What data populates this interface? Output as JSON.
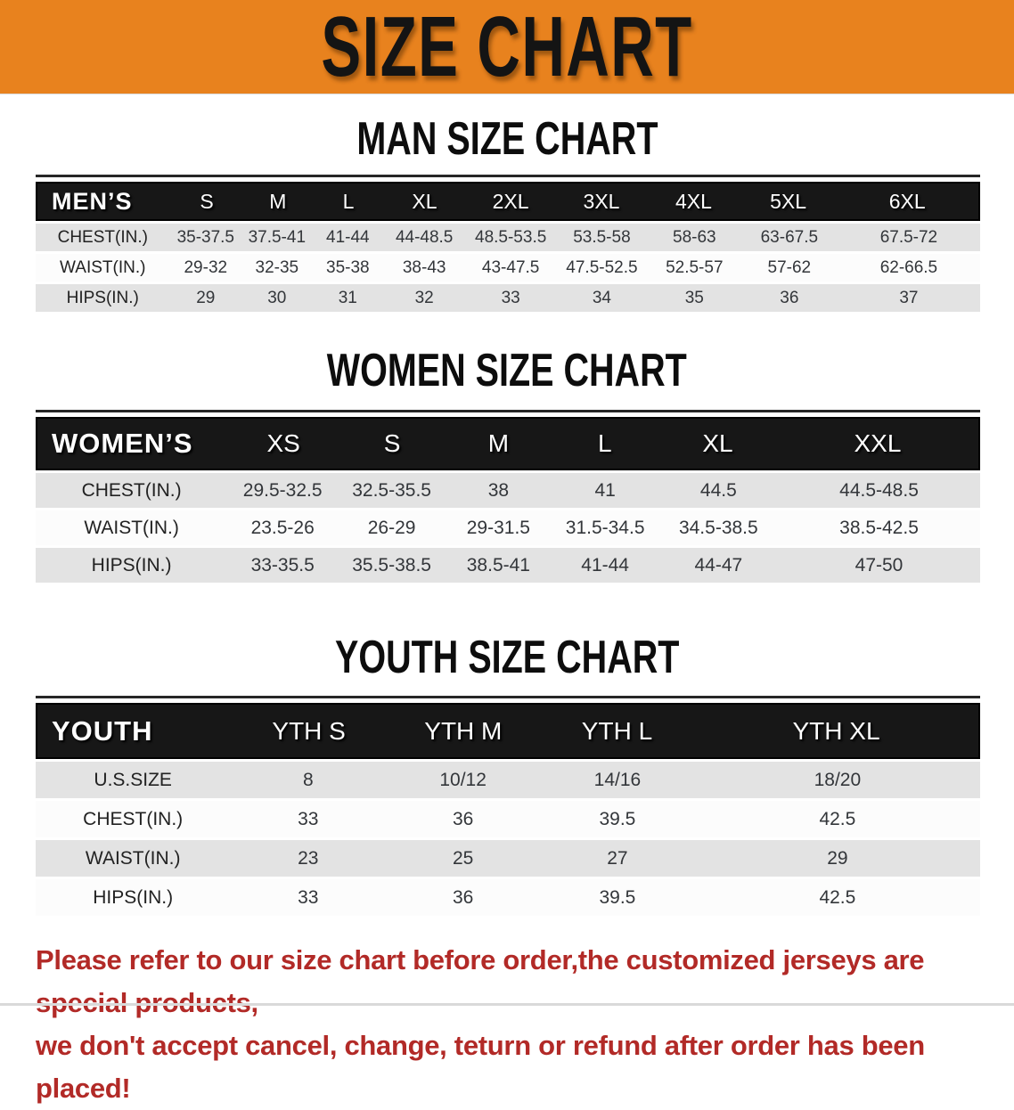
{
  "banner": {
    "title": "SIZE CHART",
    "background_color": "#E8821E"
  },
  "colors": {
    "banner_orange": "#E8821E",
    "header_bar_black": "#171717",
    "row_gray": "#E3E3E3",
    "row_white": "#FCFCFC",
    "disclaimer_red": "#B22A27"
  },
  "sections": [
    {
      "heading": "MAN SIZE CHART",
      "table": {
        "header_label": "MEN’S",
        "columns": [
          "S",
          "M",
          "L",
          "XL",
          "2XL",
          "3XL",
          "4XL",
          "5XL",
          "6XL"
        ],
        "rows": [
          {
            "label": "CHEST(IN.)",
            "values": [
              "35-37.5",
              "37.5-41",
              "41-44",
              "44-48.5",
              "48.5-53.5",
              "53.5-58",
              "58-63",
              "63-67.5",
              "67.5-72"
            ]
          },
          {
            "label": "WAIST(IN.)",
            "values": [
              "29-32",
              "32-35",
              "35-38",
              "38-43",
              "43-47.5",
              "47.5-52.5",
              "52.5-57",
              "57-62",
              "62-66.5"
            ]
          },
          {
            "label": "HIPS(IN.)",
            "values": [
              "29",
              "30",
              "31",
              "32",
              "33",
              "34",
              "35",
              "36",
              "37"
            ]
          }
        ]
      }
    },
    {
      "heading": "WOMEN SIZE CHART",
      "table": {
        "header_label": "WOMEN’S",
        "columns": [
          "XS",
          "S",
          "M",
          "L",
          "XL",
          "XXL"
        ],
        "rows": [
          {
            "label": "CHEST(IN.)",
            "values": [
              "29.5-32.5",
              "32.5-35.5",
              "38",
              "41",
              "44.5",
              "44.5-48.5"
            ]
          },
          {
            "label": "WAIST(IN.)",
            "values": [
              "23.5-26",
              "26-29",
              "29-31.5",
              "31.5-34.5",
              "34.5-38.5",
              "38.5-42.5"
            ]
          },
          {
            "label": "HIPS(IN.)",
            "values": [
              "33-35.5",
              "35.5-38.5",
              "38.5-41",
              "41-44",
              "44-47",
              "47-50"
            ]
          }
        ]
      }
    },
    {
      "heading": "YOUTH SIZE CHART",
      "table": {
        "header_label": "YOUTH",
        "columns": [
          "YTH S",
          "YTH M",
          "YTH L",
          "YTH XL"
        ],
        "rows": [
          {
            "label": "U.S.SIZE",
            "values": [
              "8",
              "10/12",
              "14/16",
              "18/20"
            ]
          },
          {
            "label": "CHEST(IN.)",
            "values": [
              "33",
              "36",
              "39.5",
              "42.5"
            ]
          },
          {
            "label": "WAIST(IN.)",
            "values": [
              "23",
              "25",
              "27",
              "29"
            ]
          },
          {
            "label": "HIPS(IN.)",
            "values": [
              "33",
              "36",
              "39.5",
              "42.5"
            ]
          }
        ]
      }
    }
  ],
  "disclaimer": {
    "line1": "Please refer to our size chart before order,the customized jerseys are special products,",
    "line2": "we don't accept cancel, change, teturn or refund after order has been placed!"
  }
}
